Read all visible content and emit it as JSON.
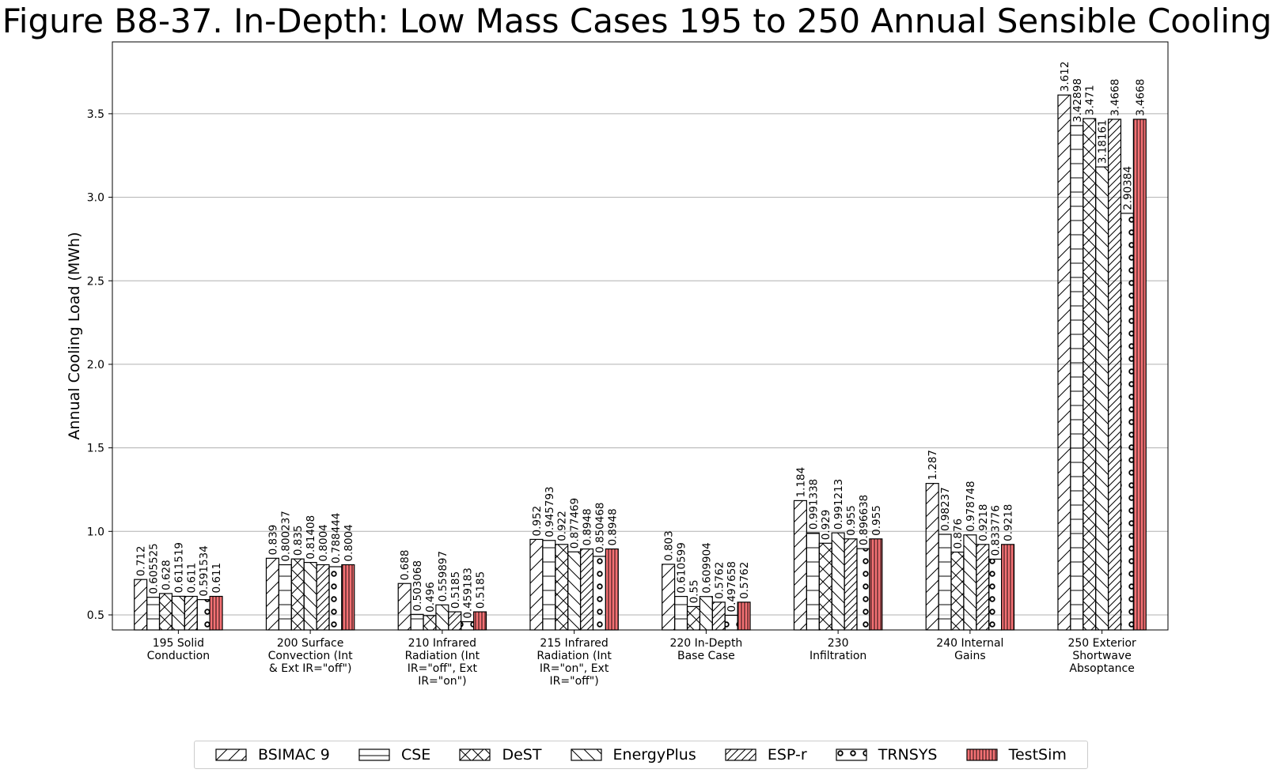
{
  "chart_data": {
    "type": "bar",
    "title": "Figure B8-37. In-Depth: Low Mass Cases 195 to 250 Annual Sensible Cooling",
    "ylabel": "Annual Cooling Load (MWh)",
    "xlabel": "",
    "ylim": [
      0.41,
      3.93
    ],
    "yticks": [
      "0.5",
      "1.0",
      "1.5",
      "2.0",
      "2.5",
      "3.0",
      "3.5"
    ],
    "grid": "horizontal",
    "legend_position": "bottom-center",
    "categories": [
      [
        "195 Solid",
        "Conduction"
      ],
      [
        "200 Surface",
        "Convection (Int",
        "& Ext IR=\"off\")"
      ],
      [
        "210 Infrared",
        "Radiation (Int",
        "IR=\"off\", Ext",
        "IR=\"on\")"
      ],
      [
        "215 Infrared",
        "Radiation (Int",
        "IR=\"on\", Ext",
        "IR=\"off\")"
      ],
      [
        "220 In-Depth",
        "Base Case"
      ],
      [
        "230",
        "Infiltration"
      ],
      [
        "240 Internal",
        "Gains"
      ],
      [
        "250 Exterior",
        "Shortwave",
        "Absoptance"
      ]
    ],
    "series": [
      {
        "name": "BSIMAC 9",
        "pattern": "diag-fwd",
        "color": "#ffffff",
        "values": [
          0.712,
          0.839,
          0.688,
          0.952,
          0.803,
          1.184,
          1.287,
          3.612
        ],
        "labels": [
          "0.712",
          "0.839",
          "0.688",
          "0.952",
          "0.803",
          "1.184",
          "1.287",
          "3.612"
        ]
      },
      {
        "name": "CSE",
        "pattern": "horizontal",
        "color": "#ffffff",
        "values": [
          0.605525,
          0.800237,
          0.503068,
          0.945793,
          0.610599,
          0.991338,
          0.98237,
          3.42898
        ],
        "labels": [
          "0.605525",
          "0.800237",
          "0.503068",
          "0.945793",
          "0.610599",
          "0.991338",
          "0.98237",
          "3.42898"
        ]
      },
      {
        "name": "DeST",
        "pattern": "cross",
        "color": "#ffffff",
        "values": [
          0.628,
          0.835,
          0.496,
          0.922,
          0.55,
          0.929,
          0.876,
          3.471
        ],
        "labels": [
          "0.628",
          "0.835",
          "0.496",
          "0.922",
          "0.55",
          "0.929",
          "0.876",
          "3.471"
        ]
      },
      {
        "name": "EnergyPlus",
        "pattern": "diag-back",
        "color": "#ffffff",
        "values": [
          0.611519,
          0.81408,
          0.559897,
          0.877469,
          0.609904,
          0.991213,
          0.978748,
          3.18161
        ],
        "labels": [
          "0.611519",
          "0.81408",
          "0.559897",
          "0.877469",
          "0.609904",
          "0.991213",
          "0.978748",
          "3.18161"
        ]
      },
      {
        "name": "ESP-r",
        "pattern": "diag-fwd-dense",
        "color": "#ffffff",
        "values": [
          0.611,
          0.8004,
          0.5185,
          0.8948,
          0.5762,
          0.955,
          0.9218,
          3.4668
        ],
        "labels": [
          "0.611",
          "0.8004",
          "0.5185",
          "0.8948",
          "0.5762",
          "0.955",
          "0.9218",
          "3.4668"
        ]
      },
      {
        "name": "TRNSYS",
        "pattern": "circles",
        "color": "#ffffff",
        "values": [
          0.591534,
          0.788444,
          0.459183,
          0.850468,
          0.497658,
          0.896638,
          0.833776,
          2.90384
        ],
        "labels": [
          "0.591534",
          "0.788444",
          "0.459183",
          "0.850468",
          "0.497658",
          "0.896638",
          "0.833776",
          "2.90384"
        ]
      },
      {
        "name": "TestSim",
        "pattern": "vertical",
        "color": "#f47174",
        "values": [
          0.611,
          0.8004,
          0.5185,
          0.8948,
          0.5762,
          0.955,
          0.9218,
          3.4668
        ],
        "labels": [
          "0.611",
          "0.8004",
          "0.5185",
          "0.8948",
          "0.5762",
          "0.955",
          "0.9218",
          "3.4668"
        ]
      }
    ]
  }
}
